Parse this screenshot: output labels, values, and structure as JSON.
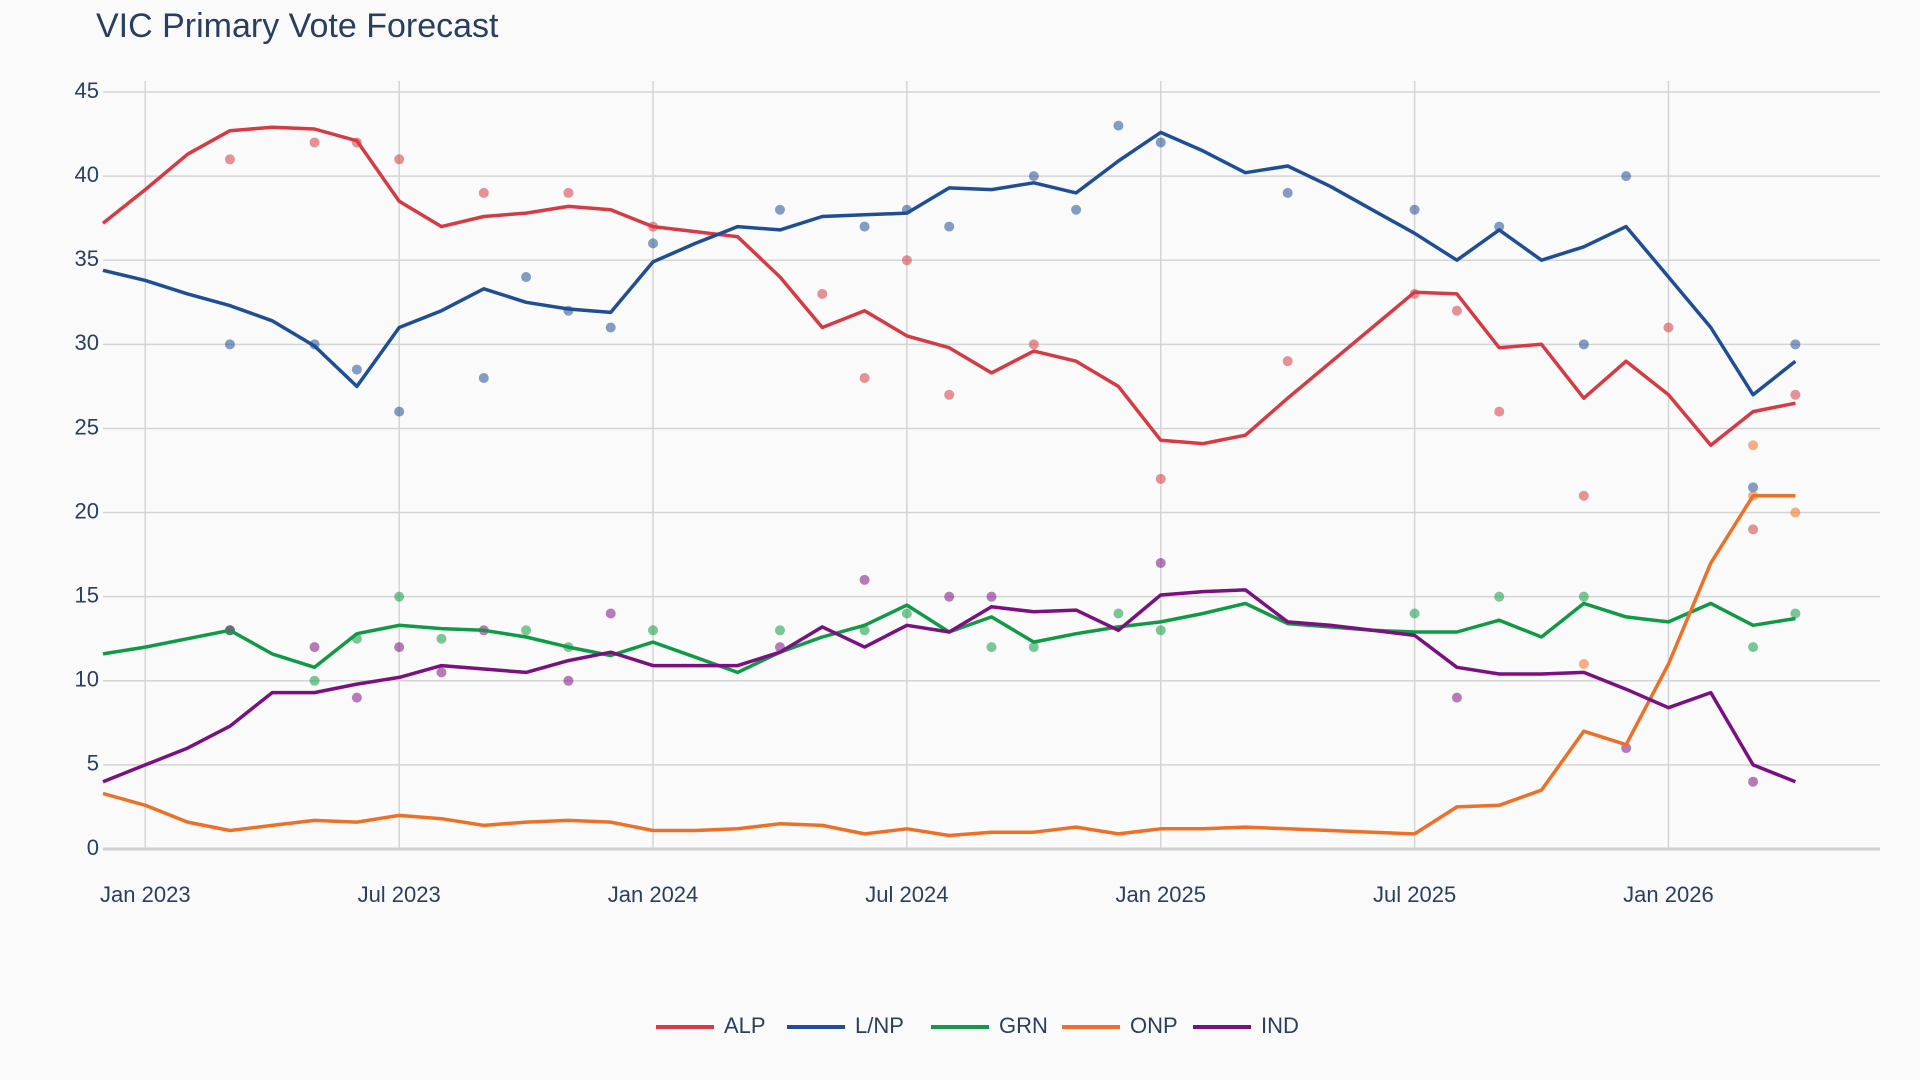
{
  "chart_data": {
    "type": "line",
    "title": "VIC Primary Vote Forecast",
    "x": [
      "2022-12",
      "2023-01",
      "2023-02",
      "2023-03",
      "2023-04",
      "2023-05",
      "2023-06",
      "2023-07",
      "2023-08",
      "2023-09",
      "2023-10",
      "2023-11",
      "2023-12",
      "2024-01",
      "2024-02",
      "2024-03",
      "2024-04",
      "2024-05",
      "2024-06",
      "2024-07",
      "2024-08",
      "2024-09",
      "2024-10",
      "2024-11",
      "2024-12",
      "2025-01",
      "2025-02",
      "2025-03",
      "2025-04",
      "2025-05",
      "2025-06",
      "2025-07",
      "2025-08",
      "2025-09",
      "2025-10",
      "2025-11",
      "2025-12",
      "2026-01",
      "2026-02",
      "2026-03",
      "2026-04"
    ],
    "xlim": [
      "2022-12",
      "2026-06"
    ],
    "xticks": [
      {
        "value": "2023-01",
        "label": "Jan 2023"
      },
      {
        "value": "2023-07",
        "label": "Jul 2023"
      },
      {
        "value": "2024-01",
        "label": "Jan 2024"
      },
      {
        "value": "2024-07",
        "label": "Jul 2024"
      },
      {
        "value": "2025-01",
        "label": "Jan 2025"
      },
      {
        "value": "2025-07",
        "label": "Jul 2025"
      },
      {
        "value": "2026-01",
        "label": "Jan 2026"
      }
    ],
    "ylim": [
      0,
      45
    ],
    "yticks": [
      0,
      5,
      10,
      15,
      20,
      25,
      30,
      35,
      40,
      45
    ],
    "grid": true,
    "series": [
      {
        "name": "ALP",
        "color": "#d63a44",
        "values": [
          37.2,
          39.2,
          41.3,
          42.7,
          42.9,
          42.8,
          42.1,
          38.5,
          37.0,
          37.6,
          37.8,
          38.2,
          38.0,
          37.0,
          36.7,
          36.4,
          34.0,
          31.0,
          32.0,
          30.5,
          29.8,
          28.3,
          29.6,
          29.0,
          27.5,
          24.3,
          24.1,
          24.6,
          26.8,
          28.9,
          31.0,
          33.1,
          33.0,
          29.8,
          30.0,
          26.8,
          29.0,
          27.0,
          24.0,
          26.0,
          26.5
        ],
        "polls": {
          "x": [
            "2023-03",
            "2023-05",
            "2023-06",
            "2023-07",
            "2023-09",
            "2023-11",
            "2024-01",
            "2024-05",
            "2024-06",
            "2024-07",
            "2024-08",
            "2024-10",
            "2025-01",
            "2025-04",
            "2025-07",
            "2025-08",
            "2025-09",
            "2025-11",
            "2026-01",
            "2026-03",
            "2026-04"
          ],
          "values": [
            41,
            42,
            42,
            41,
            39,
            39,
            37,
            33,
            28,
            35,
            27,
            30,
            22,
            29,
            33,
            32,
            26,
            21,
            31,
            19,
            27
          ]
        }
      },
      {
        "name": "L/NP",
        "color": "#1f4e96",
        "values": [
          34.4,
          33.8,
          33.0,
          32.3,
          31.4,
          29.9,
          27.5,
          31.0,
          32.0,
          33.3,
          32.5,
          32.1,
          31.9,
          34.9,
          36.0,
          37.0,
          36.8,
          37.6,
          37.7,
          37.8,
          39.3,
          39.2,
          39.6,
          39.0,
          40.9,
          42.6,
          41.5,
          40.2,
          40.6,
          39.4,
          38.0,
          36.6,
          35.0,
          36.8,
          35.0,
          35.8,
          37.0,
          34.0,
          31.0,
          27.0,
          29.0
        ],
        "polls": {
          "x": [
            "2023-03",
            "2023-05",
            "2023-06",
            "2023-07",
            "2023-09",
            "2023-10",
            "2023-11",
            "2023-12",
            "2024-01",
            "2024-04",
            "2024-06",
            "2024-07",
            "2024-08",
            "2024-10",
            "2024-11",
            "2024-12",
            "2025-01",
            "2025-04",
            "2025-07",
            "2025-09",
            "2025-11",
            "2025-12",
            "2026-03",
            "2026-04"
          ],
          "values": [
            30,
            30,
            28.5,
            26,
            28,
            34,
            32,
            31,
            36,
            38,
            37,
            38,
            37,
            40,
            38,
            43,
            42,
            39,
            38,
            37,
            30,
            40,
            21.5,
            30
          ]
        }
      },
      {
        "name": "GRN",
        "color": "#109a46",
        "values": [
          11.6,
          12.0,
          12.5,
          13.0,
          11.6,
          10.8,
          12.8,
          13.3,
          13.1,
          13.0,
          12.6,
          12.0,
          11.5,
          12.3,
          11.4,
          10.5,
          11.7,
          12.6,
          13.3,
          14.5,
          12.9,
          13.8,
          12.3,
          12.8,
          13.2,
          13.5,
          14.0,
          14.6,
          13.4,
          13.2,
          13.0,
          12.9,
          12.9,
          13.6,
          12.6,
          14.6,
          13.8,
          13.5,
          14.6,
          13.3,
          13.7
        ],
        "polls": {
          "x": [
            "2023-03",
            "2023-05",
            "2023-06",
            "2023-07",
            "2023-08",
            "2023-10",
            "2023-11",
            "2024-01",
            "2024-04",
            "2024-06",
            "2024-07",
            "2024-09",
            "2024-10",
            "2024-12",
            "2025-01",
            "2025-07",
            "2025-09",
            "2025-11",
            "2026-03",
            "2026-04"
          ],
          "values": [
            13,
            10,
            12.5,
            15,
            12.5,
            13,
            12,
            13,
            13,
            13,
            14,
            12,
            12,
            14,
            13,
            14,
            15,
            15,
            12,
            14
          ]
        }
      },
      {
        "name": "ONP",
        "color": "#ee7026",
        "values": [
          3.3,
          2.6,
          1.6,
          1.1,
          1.4,
          1.7,
          1.6,
          2.0,
          1.8,
          1.4,
          1.6,
          1.7,
          1.6,
          1.1,
          1.1,
          1.2,
          1.5,
          1.4,
          0.9,
          1.2,
          0.8,
          1.0,
          1.0,
          1.3,
          0.9,
          1.2,
          1.2,
          1.3,
          1.2,
          1.1,
          1.0,
          0.9,
          2.5,
          2.6,
          3.5,
          7.0,
          6.2,
          11.0,
          17.0,
          21.0,
          21.0
        ],
        "polls": {
          "x": [
            "2025-11",
            "2026-03",
            "2026-03",
            "2026-04"
          ],
          "values": [
            11,
            21,
            24,
            20
          ]
        }
      },
      {
        "name": "IND",
        "color": "#7b1080",
        "values": [
          4.0,
          5.0,
          6.0,
          7.3,
          9.3,
          9.3,
          9.8,
          10.2,
          10.9,
          10.7,
          10.5,
          11.2,
          11.7,
          10.9,
          10.9,
          10.9,
          11.7,
          13.2,
          12.0,
          13.3,
          12.9,
          14.4,
          14.1,
          14.2,
          13.0,
          15.1,
          15.3,
          15.4,
          13.5,
          13.3,
          13.0,
          12.7,
          10.8,
          10.4,
          10.4,
          10.5,
          9.5,
          8.4,
          9.3,
          5.0,
          4.0
        ],
        "polls": {
          "x": [
            "2023-03",
            "2023-05",
            "2023-06",
            "2023-07",
            "2023-08",
            "2023-09",
            "2023-11",
            "2023-12",
            "2024-04",
            "2024-06",
            "2024-08",
            "2024-09",
            "2025-01",
            "2025-08",
            "2025-12",
            "2026-03"
          ],
          "values": [
            13,
            12,
            9,
            12,
            10.5,
            13,
            10,
            14,
            12,
            16,
            15,
            15,
            17,
            9,
            6,
            4
          ]
        }
      }
    ]
  }
}
